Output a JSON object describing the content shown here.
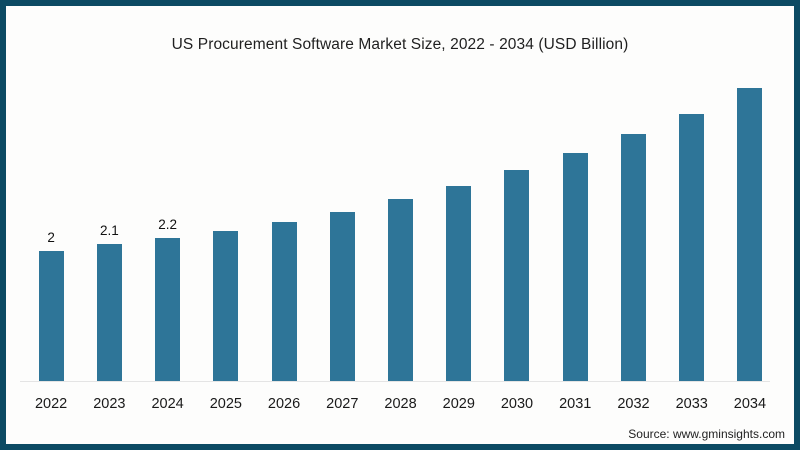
{
  "title": "US Procurement Software Market Size, 2022 - 2034 (USD Billion)",
  "source": "Source: www.gminsights.com",
  "colors": {
    "bar": "#2e7598",
    "frame_border": "#0c4a63",
    "axis_line": "#e4e4e4",
    "title_text": "#1f1f1f"
  },
  "chart_data": {
    "type": "bar",
    "title": "US Procurement Software Market Size, 2022 - 2034 (USD Billion)",
    "categories": [
      "2022",
      "2023",
      "2024",
      "2025",
      "2026",
      "2027",
      "2028",
      "2029",
      "2030",
      "2031",
      "2032",
      "2033",
      "2034"
    ],
    "values": [
      2,
      2.1,
      2.2,
      2.3,
      2.45,
      2.6,
      2.8,
      3.0,
      3.25,
      3.5,
      3.8,
      4.1,
      4.5
    ],
    "data_labels": [
      "2",
      "2.1",
      "2.2",
      "",
      "",
      "",
      "",
      "",
      "",
      "",
      "",
      "",
      ""
    ],
    "xlabel": "",
    "ylabel": "",
    "ylim": [
      0,
      4.6
    ],
    "grid": false,
    "legend_position": "none",
    "bar_color": "#2e7598"
  }
}
